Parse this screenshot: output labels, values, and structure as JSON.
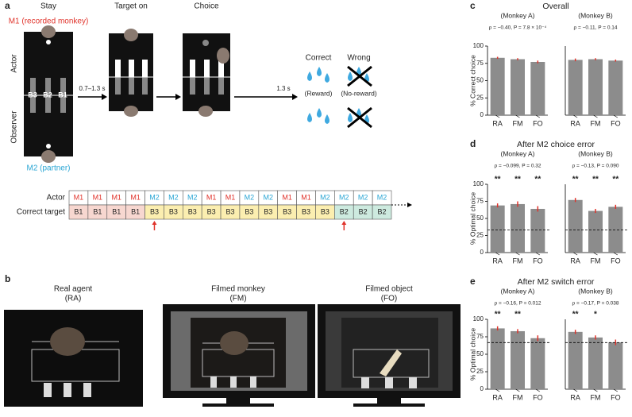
{
  "panel_a": {
    "label": "a",
    "phases": [
      "Stay",
      "Target on",
      "Choice"
    ],
    "m1": "M1 (recorded monkey)",
    "m2": "M2 (partner)",
    "roles": [
      "Actor",
      "Observer"
    ],
    "bars": [
      "B3",
      "B2",
      "B1"
    ],
    "delays": [
      "0.7–1.3 s",
      "1.3 s"
    ],
    "outcomes": [
      {
        "title": "Correct",
        "note": "(Reward)"
      },
      {
        "title": "Wrong",
        "note": "(No-reward)"
      }
    ],
    "sequence": {
      "row_labels": [
        "Actor",
        "Correct target"
      ],
      "actor": [
        "M1",
        "M1",
        "M1",
        "M1",
        "M2",
        "M2",
        "M2",
        "M1",
        "M1",
        "M2",
        "M2",
        "M1",
        "M1",
        "M2",
        "M2",
        "M2",
        "M2"
      ],
      "target": [
        "B1",
        "B1",
        "B1",
        "B1",
        "B3",
        "B3",
        "B3",
        "B3",
        "B3",
        "B3",
        "B3",
        "B3",
        "B3",
        "B3",
        "B2",
        "B2",
        "B2"
      ]
    }
  },
  "panel_b": {
    "label": "b",
    "conditions": [
      {
        "name": "Real agent",
        "code": "(RA)"
      },
      {
        "name": "Filmed monkey",
        "code": "(FM)"
      },
      {
        "name": "Filmed object",
        "code": "(FO)"
      }
    ]
  },
  "rows": [
    {
      "label": "c",
      "title": "Overall",
      "ylabel": "% Correct choice"
    },
    {
      "label": "d",
      "title": "After M2 choice error",
      "ylabel": "% Optimal choice"
    },
    {
      "label": "e",
      "title": "After M2 switch error",
      "ylabel": "% Optimal choice"
    }
  ],
  "chart_data": [
    {
      "type": "bar",
      "subtitle": "(Monkey A)",
      "annotation": "ρ = −0.40, P = 7.8 × 10⁻⁴",
      "categories": [
        "RA",
        "FM",
        "FO"
      ],
      "values": [
        83,
        81,
        77
      ],
      "errors": [
        1.5,
        1.5,
        2
      ],
      "color": "#8c8c8c",
      "error_color": "#e0332b",
      "ylim": [
        0,
        100
      ],
      "yticks": [
        0,
        25,
        50,
        75,
        100
      ]
    },
    {
      "type": "bar",
      "subtitle": "(Monkey B)",
      "annotation": "ρ = −0.11, P = 0.14",
      "categories": [
        "RA",
        "FM",
        "FO"
      ],
      "values": [
        80,
        81,
        79
      ],
      "errors": [
        2,
        1.5,
        1.5
      ],
      "color": "#8c8c8c",
      "error_color": "#e0332b",
      "ylim": [
        0,
        100
      ]
    },
    {
      "type": "bar",
      "subtitle": "(Monkey A)",
      "annotation": "ρ = −0.099, P = 0.32",
      "categories": [
        "RA",
        "FM",
        "FO"
      ],
      "values": [
        69,
        71,
        64
      ],
      "errors": [
        3,
        4,
        4
      ],
      "stars": [
        "**",
        "**",
        "**"
      ],
      "reference_line": 33.3,
      "color": "#8c8c8c",
      "error_color": "#e0332b",
      "ylim": [
        0,
        100
      ],
      "yticks": [
        0,
        25,
        50,
        75,
        100
      ]
    },
    {
      "type": "bar",
      "subtitle": "(Monkey B)",
      "annotation": "ρ = −0.13, P = 0.090",
      "categories": [
        "RA",
        "FM",
        "FO"
      ],
      "values": [
        77,
        61,
        67
      ],
      "errors": [
        3,
        3,
        3
      ],
      "stars": [
        "**",
        "**",
        "**"
      ],
      "reference_line": 33.3,
      "color": "#8c8c8c",
      "error_color": "#e0332b",
      "ylim": [
        0,
        100
      ]
    },
    {
      "type": "bar",
      "subtitle": "(Monkey A)",
      "annotation": "ρ = −0.16, P = 0.012",
      "categories": [
        "RA",
        "FM",
        "FO"
      ],
      "values": [
        87,
        83,
        73
      ],
      "errors": [
        3,
        3,
        4
      ],
      "stars": [
        "**",
        "**",
        null
      ],
      "reference_line": 66.7,
      "color": "#8c8c8c",
      "error_color": "#e0332b",
      "ylim": [
        0,
        100
      ],
      "yticks": [
        0,
        25,
        50,
        75,
        100
      ]
    },
    {
      "type": "bar",
      "subtitle": "(Monkey B)",
      "annotation": "ρ = −0.17, P = 0.038",
      "categories": [
        "RA",
        "FM",
        "FO"
      ],
      "values": [
        82,
        74,
        67
      ],
      "errors": [
        3,
        3,
        4
      ],
      "stars": [
        "**",
        "*",
        null
      ],
      "reference_line": 66.7,
      "color": "#8c8c8c",
      "error_color": "#e0332b",
      "ylim": [
        0,
        100
      ]
    }
  ]
}
